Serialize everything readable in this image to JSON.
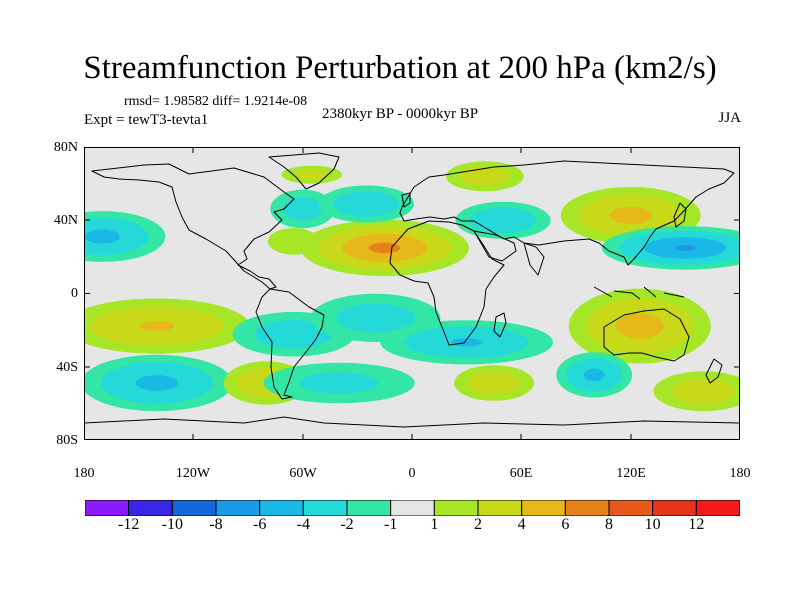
{
  "title": "Streamfunction Perturbation at 200 hPa (km2/s)",
  "stats": "rmsd= 1.98582  diff= 1.9214e-08",
  "expt": "Expt = tewT3-tevta1",
  "period": "2380kyr BP - 0000kyr BP",
  "season": "JJA",
  "lat_ticks": [
    "80N",
    "40N",
    "0",
    "40S",
    "80S"
  ],
  "lon_ticks": [
    "180",
    "120W",
    "60W",
    "0",
    "60E",
    "120E",
    "180"
  ],
  "colorbar": {
    "labels": [
      "-12",
      "-10",
      "-8",
      "-6",
      "-4",
      "-2",
      "-1",
      "1",
      "2",
      "4",
      "6",
      "8",
      "10",
      "12"
    ],
    "colors": [
      "#8c1aff",
      "#3a26e6",
      "#1466d9",
      "#1a99e6",
      "#1ab8e6",
      "#26d9d9",
      "#33e6a6",
      "#e6e6e6",
      "#a6e626",
      "#c8d91a",
      "#e6b81a",
      "#e6801a",
      "#e6591a",
      "#e6331a",
      "#f21a1a"
    ]
  },
  "field": {
    "background": "#e6e6e6",
    "anomalies": [
      {
        "lon": -170,
        "lat": 35,
        "amp": -4.5,
        "sx": 20,
        "sy": 9
      },
      {
        "lon": -140,
        "lat": -20,
        "amp": 4.2,
        "sx": 30,
        "sy": 10
      },
      {
        "lon": -140,
        "lat": -55,
        "amp": -4.5,
        "sx": 24,
        "sy": 10
      },
      {
        "lon": -80,
        "lat": -55,
        "amp": 4.0,
        "sx": 14,
        "sy": 8
      },
      {
        "lon": -65,
        "lat": -25,
        "amp": -3.2,
        "sx": 22,
        "sy": 9
      },
      {
        "lon": -20,
        "lat": -15,
        "amp": -3.0,
        "sx": 24,
        "sy": 10
      },
      {
        "lon": 30,
        "lat": -30,
        "amp": -4.2,
        "sx": 28,
        "sy": 8
      },
      {
        "lon": -40,
        "lat": -55,
        "amp": -2.6,
        "sx": 30,
        "sy": 9
      },
      {
        "lon": -60,
        "lat": 52,
        "amp": -3.0,
        "sx": 12,
        "sy": 8
      },
      {
        "lon": -55,
        "lat": 73,
        "amp": 2.6,
        "sx": 12,
        "sy": 4
      },
      {
        "lon": -65,
        "lat": 32,
        "amp": 2.0,
        "sx": 12,
        "sy": 7
      },
      {
        "lon": -15,
        "lat": 28,
        "amp": 6.4,
        "sx": 24,
        "sy": 9
      },
      {
        "lon": -25,
        "lat": 55,
        "amp": -3.8,
        "sx": 16,
        "sy": 7
      },
      {
        "lon": 40,
        "lat": 72,
        "amp": 3.2,
        "sx": 14,
        "sy": 6
      },
      {
        "lon": 50,
        "lat": 45,
        "amp": -3.8,
        "sx": 16,
        "sy": 7
      },
      {
        "lon": 120,
        "lat": 48,
        "amp": 4.6,
        "sx": 22,
        "sy": 10
      },
      {
        "lon": 150,
        "lat": 28,
        "amp": -6.2,
        "sx": 24,
        "sy": 7
      },
      {
        "lon": 125,
        "lat": -20,
        "amp": 4.8,
        "sx": 22,
        "sy": 13
      },
      {
        "lon": 160,
        "lat": -60,
        "amp": 3.2,
        "sx": 18,
        "sy": 8
      },
      {
        "lon": 45,
        "lat": -55,
        "amp": 3.4,
        "sx": 14,
        "sy": 7
      },
      {
        "lon": 100,
        "lat": -50,
        "amp": -4.5,
        "sx": 12,
        "sy": 8
      }
    ]
  }
}
